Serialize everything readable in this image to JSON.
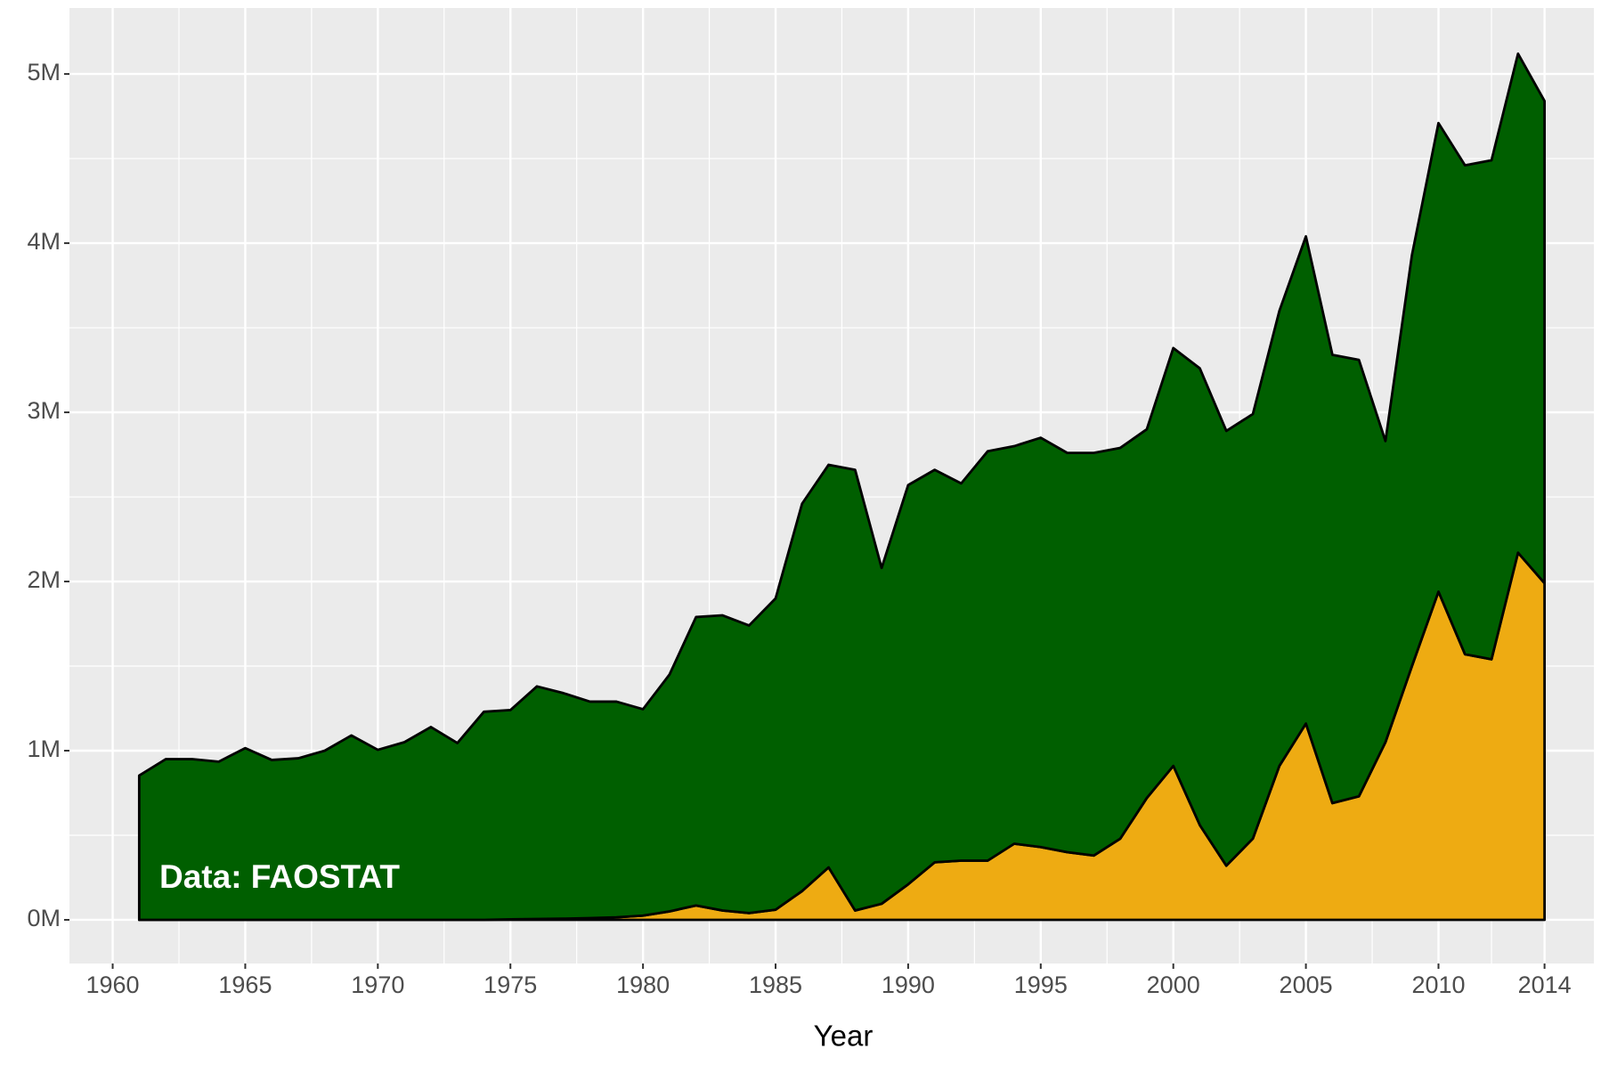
{
  "chart_data": {
    "type": "stacked_area",
    "x_label": "Year",
    "annotation": "Data: FAOSTAT",
    "x": [
      1961,
      1962,
      1963,
      1964,
      1965,
      1966,
      1967,
      1968,
      1969,
      1970,
      1971,
      1972,
      1973,
      1974,
      1975,
      1976,
      1977,
      1978,
      1979,
      1980,
      1981,
      1982,
      1983,
      1984,
      1985,
      1986,
      1987,
      1988,
      1989,
      1990,
      1991,
      1992,
      1993,
      1994,
      1995,
      1996,
      1997,
      1998,
      1999,
      2000,
      2001,
      2002,
      2003,
      2004,
      2005,
      2006,
      2007,
      2008,
      2009,
      2010,
      2011,
      2012,
      2013,
      2014
    ],
    "series": [
      {
        "color": "#eeab12",
        "values": [
          0,
          0,
          0,
          0,
          0,
          0,
          0,
          0,
          0,
          0,
          0,
          0,
          0,
          0,
          3000,
          5000,
          7000,
          10000,
          15000,
          25000,
          50000,
          85000,
          55000,
          40000,
          60000,
          170000,
          310000,
          55000,
          95000,
          210000,
          340000,
          350000,
          350000,
          450000,
          430000,
          400000,
          380000,
          480000,
          720000,
          910000,
          560000,
          320000,
          480000,
          910000,
          1160000,
          690000,
          730000,
          1050000,
          1500000,
          1940000,
          1570000,
          1540000,
          2170000,
          1990000
        ]
      },
      {
        "color": "#005f00",
        "values": [
          853000,
          950000,
          950000,
          935000,
          1015000,
          945000,
          955000,
          1000000,
          1090000,
          1005000,
          1050000,
          1140000,
          1045000,
          1230000,
          1237000,
          1375000,
          1333000,
          1280000,
          1275000,
          1220000,
          1400000,
          1705000,
          1745000,
          1700000,
          1840000,
          2290000,
          2380000,
          2605000,
          1985000,
          2360000,
          2320000,
          2230000,
          2420000,
          2350000,
          2420000,
          2360000,
          2380000,
          2310000,
          2180000,
          2470000,
          2700000,
          2570000,
          2510000,
          2690000,
          2880000,
          2650000,
          2580000,
          1780000,
          2430000,
          2770000,
          2890000,
          2950000,
          2950000,
          2850000
        ]
      }
    ],
    "xlim": [
      1958.37,
      2015.86
    ],
    "xticks": [
      1960,
      1965,
      1970,
      1975,
      1980,
      1985,
      1990,
      1995,
      2000,
      2005,
      2010,
      2014
    ],
    "ylim": [
      -258000,
      5390000
    ],
    "yticks": [
      {
        "value": 0,
        "label": "0M"
      },
      {
        "value": 1000000,
        "label": "1M"
      },
      {
        "value": 2000000,
        "label": "2M"
      },
      {
        "value": 3000000,
        "label": "3M"
      },
      {
        "value": 4000000,
        "label": "4M"
      },
      {
        "value": 5000000,
        "label": "5M"
      }
    ],
    "grid": true
  }
}
